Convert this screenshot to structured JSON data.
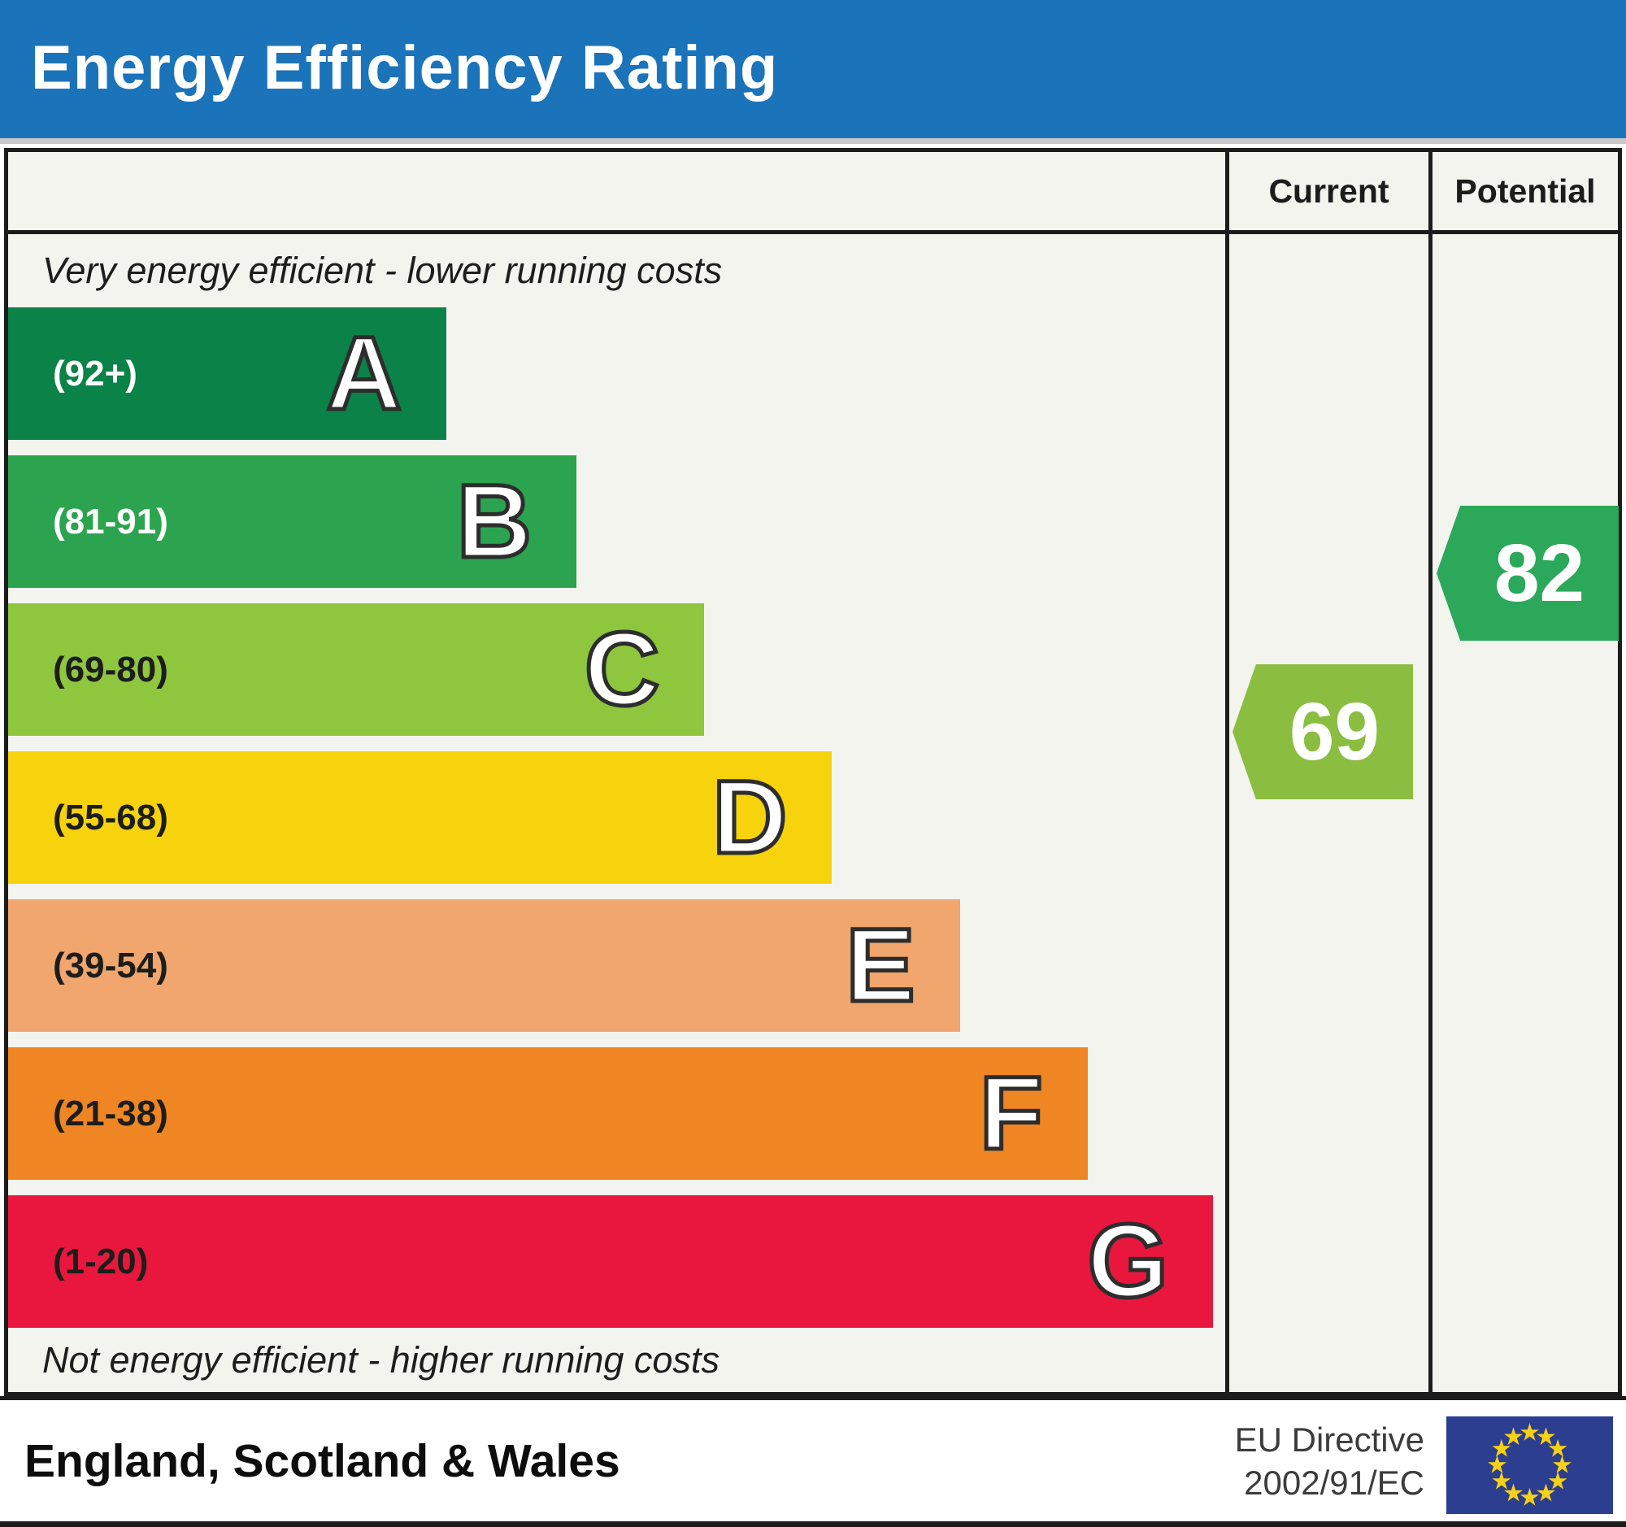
{
  "title": "Energy Efficiency Rating",
  "top_note": "Very energy efficient - lower running costs",
  "bottom_note": "Not energy efficient - higher running costs",
  "footer": {
    "region": "England, Scotland & Wales",
    "directive_line1": "EU Directive",
    "directive_line2": "2002/91/EC"
  },
  "colors": {
    "banner_blue": "#1b73ba",
    "chart_bg": "#f4f4ef",
    "border_black": "#1c1c1c",
    "flag_blue": "#2c3e8f",
    "flag_star_yellow": "#f7d117"
  },
  "chart_data": {
    "type": "bar",
    "title": "Energy Efficiency Rating",
    "orientation": "horizontal",
    "legend_position": "right-columns",
    "bands": [
      {
        "letter": "A",
        "range_label": "(92+)",
        "range_min": 92,
        "range_max": 100,
        "color": "#0b8247",
        "label_color": "#ffffff",
        "width_pct": 36.0
      },
      {
        "letter": "B",
        "range_label": "(81-91)",
        "range_min": 81,
        "range_max": 91,
        "color": "#2ca44f",
        "label_color": "#ffffff",
        "width_pct": 46.7
      },
      {
        "letter": "C",
        "range_label": "(69-80)",
        "range_min": 69,
        "range_max": 80,
        "color": "#8ec63e",
        "label_color": "#1d1d1b",
        "width_pct": 57.2
      },
      {
        "letter": "D",
        "range_label": "(55-68)",
        "range_min": 55,
        "range_max": 68,
        "color": "#f6d30d",
        "label_color": "#1d1d1b",
        "width_pct": 67.7
      },
      {
        "letter": "E",
        "range_label": "(39-54)",
        "range_min": 39,
        "range_max": 54,
        "color": "#f0a66c",
        "label_color": "#1d1d1b",
        "width_pct": 78.2
      },
      {
        "letter": "F",
        "range_label": "(21-38)",
        "range_min": 21,
        "range_max": 38,
        "color": "#ef8623",
        "label_color": "#1d1d1b",
        "width_pct": 88.7
      },
      {
        "letter": "G",
        "range_label": "(1-20)",
        "range_min": 1,
        "range_max": 20,
        "color": "#e9173d",
        "label_color": "#1d1d1b",
        "width_pct": 99.0
      }
    ],
    "current": {
      "label": "Current",
      "value": 69,
      "band": "C",
      "color": "#8bbd41"
    },
    "potential": {
      "label": "Potential",
      "value": 82,
      "band": "B",
      "color": "#2ba85a"
    }
  }
}
